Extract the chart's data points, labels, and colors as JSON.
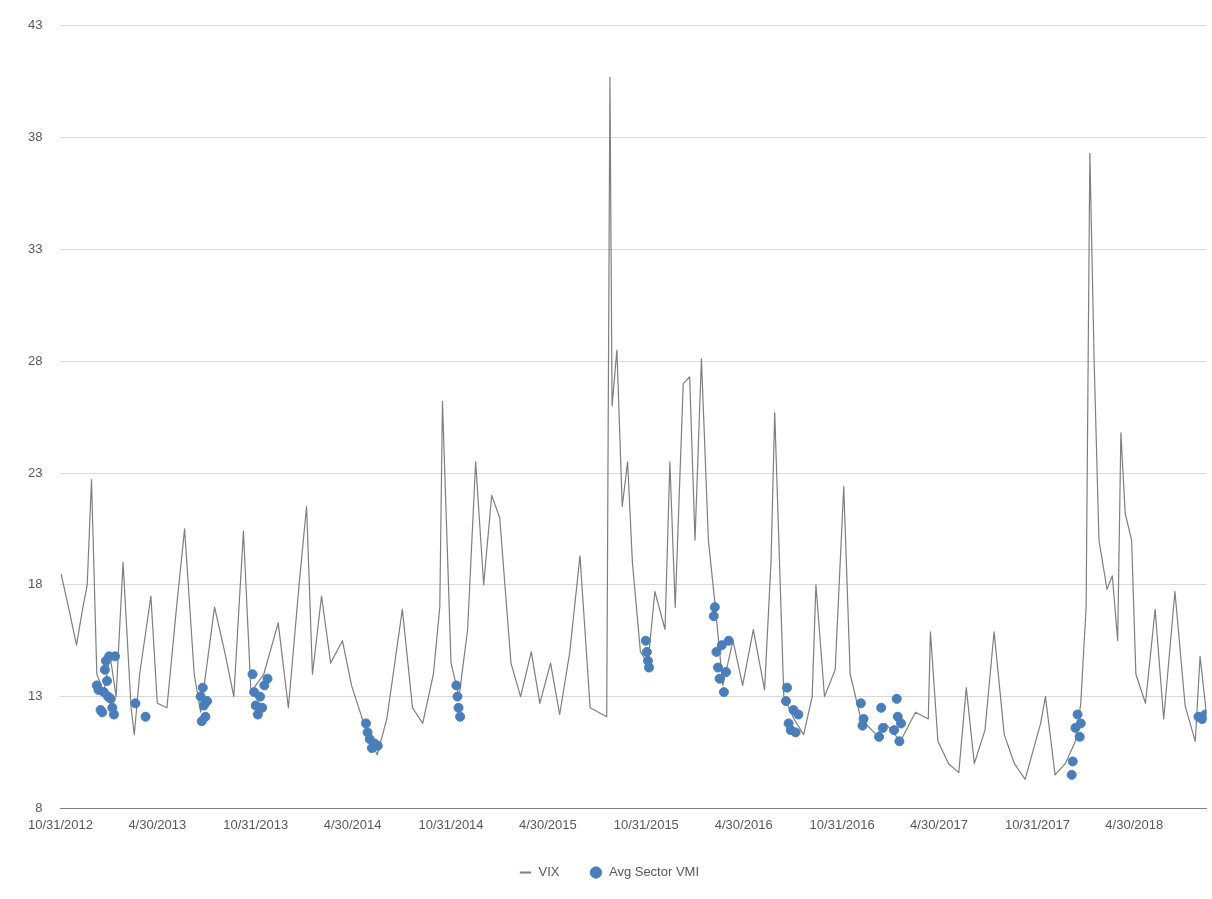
{
  "chart_data": {
    "type": "line",
    "xlim": [
      "2012-10-31",
      "2018-09-12"
    ],
    "xticks": [
      {
        "value": "2012-10-31",
        "label": "10/31/2012"
      },
      {
        "value": "2013-04-30",
        "label": "4/30/2013"
      },
      {
        "value": "2013-10-31",
        "label": "10/31/2013"
      },
      {
        "value": "2014-04-30",
        "label": "4/30/2014"
      },
      {
        "value": "2014-10-31",
        "label": "10/31/2014"
      },
      {
        "value": "2015-04-30",
        "label": "4/30/2015"
      },
      {
        "value": "2015-10-31",
        "label": "10/31/2015"
      },
      {
        "value": "2016-04-30",
        "label": "4/30/2016"
      },
      {
        "value": "2016-10-31",
        "label": "10/31/2016"
      },
      {
        "value": "2017-04-30",
        "label": "4/30/2017"
      },
      {
        "value": "2017-10-31",
        "label": "10/31/2017"
      },
      {
        "value": "2018-04-30",
        "label": "4/30/2018"
      }
    ],
    "ylim": [
      8,
      43
    ],
    "yticks": [
      8,
      13,
      18,
      23,
      28,
      33,
      38,
      43
    ],
    "grid": "y",
    "legend": "bottom",
    "series": [
      {
        "name": "VIX",
        "color": "#7f7f7f",
        "marker": "none",
        "line_style": "solid",
        "x": [
          "2012-11-01",
          "2012-11-15",
          "2012-11-30",
          "2012-12-12",
          "2012-12-20",
          "2012-12-28",
          "2013-01-07",
          "2013-01-20",
          "2013-02-01",
          "2013-02-12",
          "2013-02-25",
          "2013-03-12",
          "2013-03-18",
          "2013-03-28",
          "2013-04-18",
          "2013-04-30",
          "2013-05-18",
          "2013-06-05",
          "2013-06-20",
          "2013-07-08",
          "2013-07-20",
          "2013-08-15",
          "2013-09-03",
          "2013-09-20",
          "2013-10-08",
          "2013-10-22",
          "2013-11-15",
          "2013-12-12",
          "2013-12-31",
          "2014-01-20",
          "2014-02-03",
          "2014-02-14",
          "2014-03-03",
          "2014-03-20",
          "2014-04-11",
          "2014-04-28",
          "2014-05-25",
          "2014-06-15",
          "2014-07-03",
          "2014-08-01",
          "2014-08-20",
          "2014-09-08",
          "2014-09-28",
          "2014-10-10",
          "2014-10-15",
          "2014-10-31",
          "2014-11-15",
          "2014-12-01",
          "2014-12-16",
          "2014-12-31",
          "2015-01-15",
          "2015-01-30",
          "2015-02-20",
          "2015-03-10",
          "2015-03-30",
          "2015-04-15",
          "2015-05-05",
          "2015-05-22",
          "2015-06-10",
          "2015-06-29",
          "2015-07-18",
          "2015-08-18",
          "2015-08-24",
          "2015-08-28",
          "2015-09-06",
          "2015-09-16",
          "2015-09-26",
          "2015-10-05",
          "2015-10-20",
          "2015-11-03",
          "2015-11-16",
          "2015-12-05",
          "2015-12-14",
          "2015-12-24",
          "2016-01-08",
          "2016-01-20",
          "2016-01-30",
          "2016-02-11",
          "2016-02-24",
          "2016-03-08",
          "2016-03-22",
          "2016-04-10",
          "2016-04-28",
          "2016-05-18",
          "2016-06-08",
          "2016-06-20",
          "2016-06-27",
          "2016-07-14",
          "2016-08-02",
          "2016-08-20",
          "2016-09-05",
          "2016-09-12",
          "2016-09-28",
          "2016-10-18",
          "2016-11-03",
          "2016-11-15",
          "2016-12-05",
          "2017-01-03",
          "2017-01-20",
          "2017-02-17",
          "2017-03-17",
          "2017-04-10",
          "2017-04-14",
          "2017-04-28",
          "2017-05-18",
          "2017-06-06",
          "2017-06-20",
          "2017-07-05",
          "2017-07-25",
          "2017-08-11",
          "2017-08-30",
          "2017-09-18",
          "2017-10-08",
          "2017-11-06",
          "2017-11-15",
          "2017-12-03",
          "2017-12-22",
          "2018-01-10",
          "2018-01-20",
          "2018-01-30",
          "2018-02-06",
          "2018-02-14",
          "2018-02-23",
          "2018-03-10",
          "2018-03-20",
          "2018-03-30",
          "2018-04-05",
          "2018-04-13",
          "2018-04-25",
          "2018-05-03",
          "2018-05-21",
          "2018-06-08",
          "2018-06-24",
          "2018-07-15",
          "2018-08-03",
          "2018-08-22",
          "2018-08-31",
          "2018-09-12"
        ],
        "values": [
          18.5,
          17,
          15.3,
          17,
          18,
          22.7,
          14,
          13.2,
          14.8,
          13,
          19,
          12.5,
          11.3,
          14,
          17.5,
          12.7,
          12.5,
          17,
          20.5,
          14,
          12.3,
          17,
          15,
          13,
          20.4,
          13.2,
          14,
          16.3,
          12.5,
          18,
          21.5,
          14,
          17.5,
          14.5,
          15.5,
          13.5,
          11.5,
          10.4,
          12,
          16.9,
          12.5,
          11.8,
          14,
          17,
          26.2,
          14.5,
          13,
          16,
          23.5,
          18,
          22,
          21,
          14.5,
          13,
          15,
          12.7,
          14.5,
          12.2,
          15,
          19.3,
          12.5,
          12.1,
          40.7,
          26,
          28.5,
          21.5,
          23.5,
          19,
          15,
          14.5,
          17.7,
          16,
          23.5,
          17,
          27,
          27.3,
          20,
          28.1,
          20,
          17,
          13.5,
          15.5,
          13.5,
          16,
          13.3,
          19,
          25.7,
          13,
          12,
          11.3,
          13,
          18,
          13,
          14.2,
          22.4,
          14,
          12,
          11.3,
          11.8,
          11,
          12.3,
          12,
          15.9,
          11,
          10,
          9.6,
          13.4,
          10,
          11.5,
          15.9,
          11.3,
          10,
          9.3,
          11.8,
          13,
          9.5,
          10,
          11,
          12.7,
          17,
          37.3,
          28,
          20,
          17.8,
          18.4,
          15.5,
          24.8,
          21.2,
          20,
          14,
          12.7,
          16.9,
          12,
          17.7,
          12.6,
          11,
          14.8,
          12.2
        ]
      },
      {
        "name": "Avg Sector VMI",
        "type": "scatter",
        "color": "#4a7ebb",
        "marker": "circle",
        "x": [
          "2013-01-07",
          "2013-01-10",
          "2013-01-14",
          "2013-01-17",
          "2013-01-20",
          "2013-01-22",
          "2013-01-24",
          "2013-01-26",
          "2013-01-28",
          "2013-01-30",
          "2013-02-02",
          "2013-02-05",
          "2013-02-08",
          "2013-02-10",
          "2013-03-20",
          "2013-04-08",
          "2013-07-20",
          "2013-07-22",
          "2013-07-24",
          "2013-07-26",
          "2013-07-29",
          "2013-08-01",
          "2013-10-25",
          "2013-10-28",
          "2013-10-31",
          "2013-11-04",
          "2013-11-08",
          "2013-11-12",
          "2013-11-16",
          "2013-11-22",
          "2014-05-25",
          "2014-05-28",
          "2014-06-01",
          "2014-06-05",
          "2014-06-10",
          "2014-06-16",
          "2014-11-10",
          "2014-11-12",
          "2014-11-14",
          "2014-11-17",
          "2015-10-30",
          "2015-11-01",
          "2015-11-03",
          "2015-11-05",
          "2016-03-05",
          "2016-03-07",
          "2016-03-10",
          "2016-03-13",
          "2016-03-16",
          "2016-03-20",
          "2016-03-24",
          "2016-03-28",
          "2016-04-02",
          "2016-07-18",
          "2016-07-20",
          "2016-07-23",
          "2016-07-27",
          "2016-08-01",
          "2016-08-05",
          "2016-08-10",
          "2016-12-05",
          "2016-12-08",
          "2016-12-10",
          "2017-01-08",
          "2017-01-12",
          "2017-01-15",
          "2017-02-05",
          "2017-02-10",
          "2017-02-12",
          "2017-02-15",
          "2017-02-18",
          "2018-01-03",
          "2018-01-05",
          "2018-01-10",
          "2018-01-14",
          "2018-01-18",
          "2018-01-20",
          "2018-08-28",
          "2018-09-04",
          "2018-09-10"
        ],
        "values": [
          13.5,
          13.3,
          12.4,
          12.3,
          13.2,
          14.2,
          14.6,
          13.7,
          13.0,
          14.8,
          12.9,
          12.5,
          12.2,
          14.8,
          12.7,
          12.1,
          13.0,
          11.9,
          13.4,
          12.6,
          12.1,
          12.8,
          14.0,
          13.2,
          12.6,
          12.2,
          13.0,
          12.5,
          13.5,
          13.8,
          11.8,
          11.4,
          11.1,
          10.7,
          10.9,
          10.8,
          13.5,
          13.0,
          12.5,
          12.1,
          15.5,
          15.0,
          14.6,
          14.3,
          16.6,
          17.0,
          15.0,
          14.3,
          13.8,
          15.3,
          13.2,
          14.1,
          15.5,
          12.8,
          13.4,
          11.8,
          11.5,
          12.4,
          11.4,
          12.2,
          12.7,
          11.7,
          12.0,
          11.2,
          12.5,
          11.6,
          11.5,
          12.9,
          12.1,
          11.0,
          11.8,
          9.5,
          10.1,
          11.6,
          12.2,
          11.2,
          11.8,
          12.1,
          12.0,
          12.2
        ]
      }
    ]
  }
}
